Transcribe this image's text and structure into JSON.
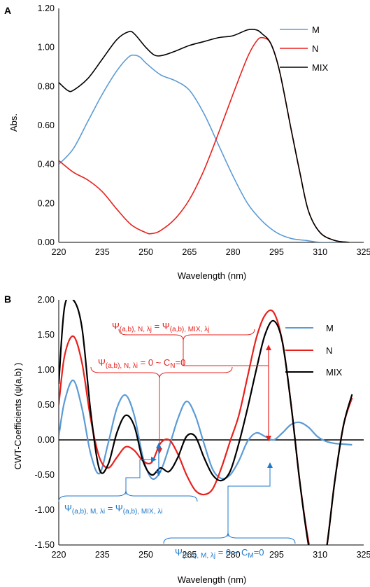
{
  "colors": {
    "M": "#5b9bd5",
    "N": "#e8211c",
    "MIX": "#000000",
    "axis": "#000000",
    "gridline": "#d9d9d9",
    "bracket_M": "#1f78c8",
    "bracket_N": "#e8211c"
  },
  "chart_data": [
    {
      "panel": "A",
      "type": "line",
      "xlabel": "Wavelength (nm)",
      "ylabel": "Abs.",
      "xlim": [
        220,
        325
      ],
      "ylim": [
        0,
        1.2
      ],
      "xticks": [
        "220",
        "235",
        "250",
        "265",
        "280",
        "295",
        "310",
        "325"
      ],
      "yticks": [
        "0.00",
        "0.20",
        "0.40",
        "0.60",
        "0.80",
        "1.00",
        "1.20"
      ],
      "grid": false,
      "legend": "top-right",
      "series": [
        {
          "name": "M",
          "color_key": "M",
          "x": [
            220,
            225,
            230,
            235,
            240,
            244,
            246,
            248,
            250,
            255,
            260,
            265,
            270,
            275,
            280,
            285,
            290,
            295,
            300,
            305,
            310,
            315,
            320
          ],
          "y": [
            0.4,
            0.48,
            0.62,
            0.76,
            0.88,
            0.95,
            0.96,
            0.95,
            0.92,
            0.86,
            0.83,
            0.78,
            0.66,
            0.5,
            0.34,
            0.2,
            0.11,
            0.05,
            0.02,
            0.01,
            0.0,
            0.0,
            0.0
          ]
        },
        {
          "name": "N",
          "color_key": "N",
          "x": [
            220,
            225,
            230,
            235,
            240,
            245,
            250,
            252,
            255,
            260,
            265,
            270,
            275,
            280,
            285,
            288,
            290,
            293,
            296,
            300,
            303,
            306,
            310,
            315,
            320
          ],
          "y": [
            0.42,
            0.36,
            0.32,
            0.26,
            0.17,
            0.09,
            0.05,
            0.045,
            0.06,
            0.12,
            0.22,
            0.37,
            0.56,
            0.76,
            0.95,
            1.03,
            1.05,
            1.02,
            0.88,
            0.58,
            0.36,
            0.16,
            0.05,
            0.01,
            0.0
          ]
        },
        {
          "name": "MIX",
          "color_key": "MIX",
          "x": [
            220,
            223,
            225,
            230,
            235,
            240,
            244,
            246,
            250,
            253,
            256,
            260,
            265,
            270,
            275,
            280,
            285,
            288,
            290,
            293,
            296,
            300,
            303,
            306,
            310,
            315,
            320
          ],
          "y": [
            0.82,
            0.78,
            0.78,
            0.84,
            0.94,
            1.04,
            1.08,
            1.07,
            1.0,
            0.96,
            0.96,
            0.98,
            1.01,
            1.03,
            1.05,
            1.06,
            1.09,
            1.09,
            1.07,
            1.02,
            0.88,
            0.58,
            0.36,
            0.16,
            0.05,
            0.01,
            0.0
          ]
        }
      ]
    },
    {
      "panel": "B",
      "type": "line",
      "xlabel": "Wavelength (nm)",
      "ylabel": "CWT-Coefficients (ψ(a,b) )",
      "xlim": [
        220,
        325
      ],
      "ylim": [
        -1.5,
        2.0
      ],
      "xticks": [
        "220",
        "235",
        "250",
        "265",
        "280",
        "295",
        "310",
        "325"
      ],
      "yticks": [
        "-1.50",
        "-1.00",
        "-0.50",
        "0.00",
        "0.50",
        "1.00",
        "1.50",
        "2.00"
      ],
      "grid": false,
      "zero_line": true,
      "legend": "top-right",
      "series": [
        {
          "name": "M",
          "color_key": "M",
          "x": [
            220,
            222,
            225,
            228,
            231,
            234,
            237,
            240,
            243,
            246,
            249,
            252,
            255,
            258,
            261,
            264,
            267,
            270,
            273,
            276,
            279,
            282,
            285,
            288,
            291,
            294,
            297,
            300,
            303,
            306,
            309,
            312,
            315,
            318,
            321
          ],
          "y": [
            0.05,
            0.55,
            0.85,
            0.45,
            -0.2,
            -0.48,
            -0.05,
            0.45,
            0.64,
            0.35,
            -0.25,
            -0.55,
            -0.45,
            -0.1,
            0.3,
            0.55,
            0.35,
            -0.05,
            -0.42,
            -0.55,
            -0.5,
            -0.3,
            -0.02,
            0.1,
            0.05,
            0.0,
            0.1,
            0.22,
            0.25,
            0.18,
            0.05,
            -0.02,
            -0.05,
            -0.06,
            -0.07
          ]
        },
        {
          "name": "N",
          "color_key": "N",
          "x": [
            220,
            222,
            225,
            228,
            231,
            234,
            237,
            240,
            243,
            246,
            249,
            252,
            255,
            258,
            261,
            264,
            267,
            270,
            273,
            276,
            279,
            282,
            285,
            288,
            291,
            294,
            297,
            300,
            303,
            306,
            309,
            312,
            315,
            318,
            321
          ],
          "y": [
            0.5,
            1.2,
            1.48,
            1.1,
            0.3,
            -0.25,
            -0.4,
            -0.25,
            -0.1,
            -0.15,
            -0.3,
            -0.32,
            -0.05,
            0.0,
            -0.2,
            -0.5,
            -0.72,
            -0.78,
            -0.7,
            -0.4,
            -0.02,
            0.35,
            0.9,
            1.45,
            1.78,
            1.82,
            1.4,
            0.5,
            -0.6,
            -1.45,
            -2.0,
            -1.6,
            -0.6,
            0.2,
            0.6
          ]
        },
        {
          "name": "MIX",
          "color_key": "MIX",
          "x": [
            220,
            222,
            225,
            228,
            231,
            234,
            237,
            240,
            243,
            246,
            249,
            252,
            255,
            258,
            261,
            264,
            267,
            270,
            273,
            276,
            279,
            282,
            285,
            288,
            291,
            294,
            297,
            300,
            303,
            306,
            309,
            312,
            315,
            318,
            321
          ],
          "y": [
            0.8,
            1.9,
            2.0,
            1.6,
            0.4,
            -0.42,
            -0.35,
            0.1,
            0.35,
            0.2,
            -0.3,
            -0.5,
            -0.4,
            -0.45,
            -0.25,
            0.05,
            0.05,
            -0.25,
            -0.5,
            -0.58,
            -0.45,
            -0.05,
            0.45,
            1.0,
            1.5,
            1.7,
            1.4,
            0.5,
            -0.6,
            -1.5,
            -2.0,
            -1.6,
            -0.6,
            0.2,
            0.65
          ]
        }
      ],
      "annotations": {
        "n_top": "Ψ(a,b), N, λj = Ψ(a,b), MIX, λj",
        "n_mid": "Ψ(a,b), N, λi = 0 ~ CN=0",
        "m_left": "Ψ(a,b), M, λi = Ψ(a,b), MIX, λi",
        "m_right": "Ψ(a,b), M, λj = 0 ~ CM=0"
      }
    }
  ]
}
